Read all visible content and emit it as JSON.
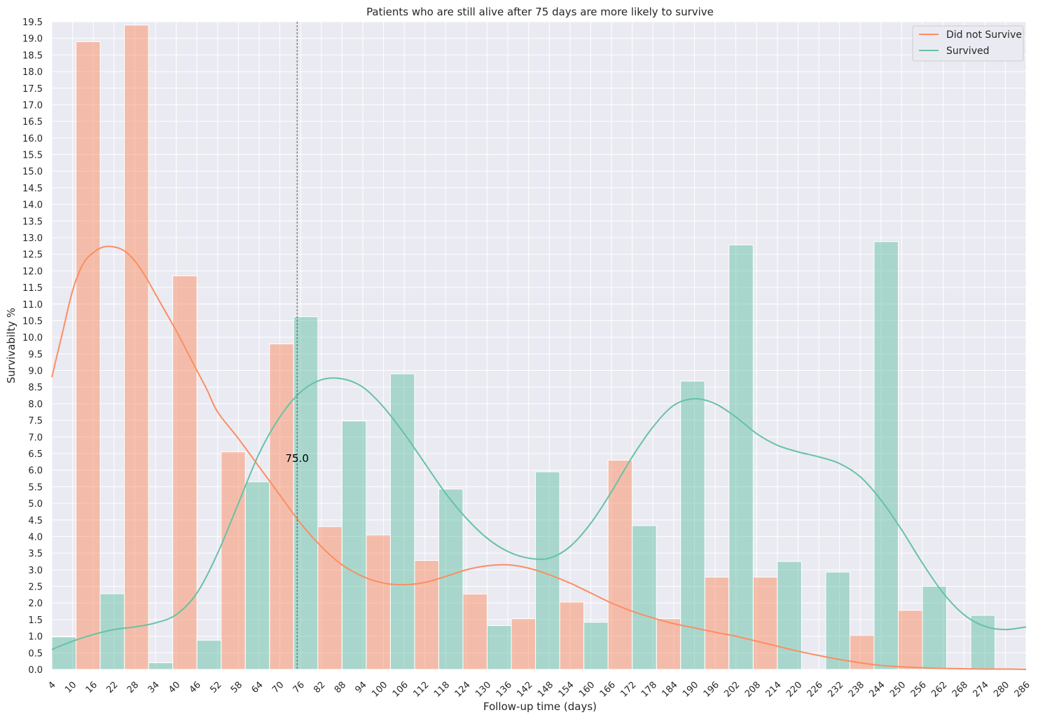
{
  "chart_data": {
    "type": "bar",
    "title": "Patients who are still alive after 75 days are more likely to survive",
    "xlabel": "Follow-up time (days)",
    "ylabel": "Survivabilty %",
    "xlim": [
      4,
      286
    ],
    "ylim": [
      0,
      19.5
    ],
    "x_ticks": [
      4,
      10,
      16,
      22,
      28,
      34,
      40,
      46,
      52,
      58,
      64,
      70,
      76,
      82,
      88,
      94,
      100,
      106,
      112,
      118,
      124,
      130,
      136,
      142,
      148,
      154,
      160,
      166,
      172,
      178,
      184,
      190,
      196,
      202,
      208,
      214,
      220,
      226,
      232,
      238,
      244,
      250,
      256,
      262,
      268,
      274,
      280,
      286
    ],
    "y_ticks": [
      "0.0",
      "0.5",
      "1.0",
      "1.5",
      "2.0",
      "2.5",
      "3.0",
      "3.5",
      "4.0",
      "4.5",
      "5.0",
      "5.5",
      "6.0",
      "6.5",
      "7.0",
      "7.5",
      "8.0",
      "8.5",
      "9.0",
      "9.5",
      "10.0",
      "10.5",
      "11.0",
      "11.5",
      "12.0",
      "12.5",
      "13.0",
      "13.5",
      "14.0",
      "14.5",
      "15.0",
      "15.5",
      "16.0",
      "16.5",
      "17.0",
      "17.5",
      "18.0",
      "18.5",
      "19.0",
      "19.5"
    ],
    "grid": true,
    "legend_position": "top-right",
    "bin_edges": [
      4,
      11,
      18,
      25,
      32,
      39,
      46,
      53,
      60,
      67,
      74,
      81,
      88,
      95,
      102,
      109,
      116,
      123,
      130,
      137,
      144,
      151,
      158,
      165,
      172,
      179,
      186,
      193,
      200,
      207,
      214,
      221,
      228,
      235,
      242,
      249,
      256,
      263,
      270,
      277,
      284
    ],
    "colors": {
      "did_not_survive": "#fc8d62",
      "survived": "#66c2a5",
      "vline": "#555555",
      "background": "#eaeaf2",
      "grid": "#ffffff"
    },
    "series": [
      {
        "name": "Did not Survive",
        "values": [
          0,
          18.9,
          0,
          19.4,
          0,
          11.85,
          0,
          6.55,
          0,
          9.8,
          0,
          4.3,
          0,
          4.05,
          0,
          3.28,
          0,
          2.27,
          0,
          1.53,
          0,
          2.03,
          0,
          6.3,
          0,
          1.53,
          0,
          2.78,
          0,
          2.78,
          0,
          0,
          0,
          1.03,
          0,
          1.78,
          0,
          0,
          0,
          0
        ],
        "kde": [
          [
            4,
            8.8
          ],
          [
            7,
            10.1
          ],
          [
            10,
            11.4
          ],
          [
            13,
            12.2
          ],
          [
            16,
            12.55
          ],
          [
            19,
            12.72
          ],
          [
            22,
            12.72
          ],
          [
            25,
            12.6
          ],
          [
            28,
            12.3
          ],
          [
            31,
            11.85
          ],
          [
            34,
            11.3
          ],
          [
            37,
            10.75
          ],
          [
            40,
            10.2
          ],
          [
            43,
            9.6
          ],
          [
            46,
            9.0
          ],
          [
            49,
            8.4
          ],
          [
            52,
            7.75
          ],
          [
            58,
            6.95
          ],
          [
            64,
            6.1
          ],
          [
            70,
            5.25
          ],
          [
            76,
            4.4
          ],
          [
            82,
            3.7
          ],
          [
            88,
            3.15
          ],
          [
            94,
            2.8
          ],
          [
            100,
            2.6
          ],
          [
            106,
            2.55
          ],
          [
            112,
            2.62
          ],
          [
            118,
            2.8
          ],
          [
            124,
            3.0
          ],
          [
            130,
            3.12
          ],
          [
            136,
            3.15
          ],
          [
            142,
            3.05
          ],
          [
            148,
            2.85
          ],
          [
            154,
            2.6
          ],
          [
            160,
            2.3
          ],
          [
            166,
            2.0
          ],
          [
            172,
            1.75
          ],
          [
            178,
            1.55
          ],
          [
            184,
            1.38
          ],
          [
            190,
            1.25
          ],
          [
            196,
            1.12
          ],
          [
            202,
            1.0
          ],
          [
            208,
            0.85
          ],
          [
            214,
            0.7
          ],
          [
            220,
            0.55
          ],
          [
            226,
            0.42
          ],
          [
            232,
            0.3
          ],
          [
            238,
            0.2
          ],
          [
            244,
            0.12
          ],
          [
            250,
            0.08
          ],
          [
            256,
            0.05
          ],
          [
            262,
            0.03
          ],
          [
            268,
            0.02
          ],
          [
            274,
            0.01
          ],
          [
            280,
            0.01
          ],
          [
            286,
            0.0
          ]
        ]
      },
      {
        "name": "Survived",
        "values": [
          0.98,
          0,
          2.28,
          0,
          0.2,
          0,
          0.88,
          0,
          5.65,
          0,
          10.62,
          0,
          7.48,
          0,
          8.9,
          0,
          5.43,
          0,
          1.32,
          0,
          5.95,
          0,
          1.42,
          0,
          4.33,
          0,
          8.68,
          0,
          12.78,
          0,
          3.25,
          0,
          2.93,
          0,
          12.88,
          0,
          2.5,
          0,
          1.63,
          0
        ],
        "kde": [
          [
            4,
            0.6
          ],
          [
            10,
            0.85
          ],
          [
            16,
            1.05
          ],
          [
            22,
            1.2
          ],
          [
            28,
            1.28
          ],
          [
            34,
            1.4
          ],
          [
            40,
            1.65
          ],
          [
            46,
            2.3
          ],
          [
            52,
            3.5
          ],
          [
            58,
            5.0
          ],
          [
            64,
            6.5
          ],
          [
            70,
            7.6
          ],
          [
            76,
            8.35
          ],
          [
            82,
            8.72
          ],
          [
            88,
            8.75
          ],
          [
            94,
            8.5
          ],
          [
            100,
            7.9
          ],
          [
            106,
            7.1
          ],
          [
            112,
            6.2
          ],
          [
            118,
            5.3
          ],
          [
            124,
            4.55
          ],
          [
            130,
            3.95
          ],
          [
            136,
            3.55
          ],
          [
            142,
            3.35
          ],
          [
            148,
            3.35
          ],
          [
            154,
            3.7
          ],
          [
            160,
            4.4
          ],
          [
            166,
            5.35
          ],
          [
            172,
            6.4
          ],
          [
            178,
            7.3
          ],
          [
            184,
            7.95
          ],
          [
            190,
            8.15
          ],
          [
            196,
            8.0
          ],
          [
            202,
            7.6
          ],
          [
            208,
            7.1
          ],
          [
            214,
            6.75
          ],
          [
            220,
            6.55
          ],
          [
            226,
            6.4
          ],
          [
            232,
            6.2
          ],
          [
            238,
            5.8
          ],
          [
            244,
            5.1
          ],
          [
            250,
            4.2
          ],
          [
            256,
            3.2
          ],
          [
            262,
            2.3
          ],
          [
            268,
            1.65
          ],
          [
            274,
            1.3
          ],
          [
            280,
            1.2
          ],
          [
            286,
            1.28
          ]
        ]
      }
    ],
    "vline": {
      "x": 75,
      "label": "75.0",
      "label_y": 6.25
    }
  }
}
